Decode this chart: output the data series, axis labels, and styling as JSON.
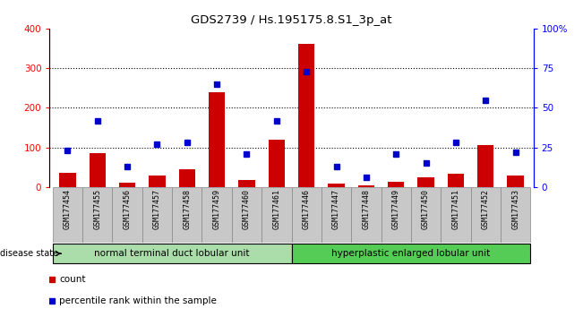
{
  "title": "GDS2739 / Hs.195175.8.S1_3p_at",
  "samples": [
    "GSM177454",
    "GSM177455",
    "GSM177456",
    "GSM177457",
    "GSM177458",
    "GSM177459",
    "GSM177460",
    "GSM177461",
    "GSM177446",
    "GSM177447",
    "GSM177448",
    "GSM177449",
    "GSM177450",
    "GSM177451",
    "GSM177452",
    "GSM177453"
  ],
  "counts": [
    35,
    85,
    12,
    30,
    45,
    240,
    18,
    120,
    362,
    8,
    5,
    14,
    25,
    33,
    105,
    30
  ],
  "percentiles": [
    23,
    42,
    13,
    27,
    28,
    65,
    21,
    42,
    73,
    13,
    6,
    21,
    15,
    28,
    55,
    22
  ],
  "group1_label": "normal terminal duct lobular unit",
  "group2_label": "hyperplastic enlarged lobular unit",
  "group1_count": 8,
  "group2_count": 8,
  "bar_color": "#cc0000",
  "dot_color": "#0000cc",
  "ylim_left": [
    0,
    400
  ],
  "ylim_right": [
    0,
    100
  ],
  "yticks_left": [
    0,
    100,
    200,
    300,
    400
  ],
  "yticks_right": [
    0,
    25,
    50,
    75,
    100
  ],
  "ytick_labels_right": [
    "0",
    "25",
    "50",
    "75",
    "100%"
  ],
  "group1_color": "#aaddaa",
  "group2_color": "#55cc55",
  "xticklabel_bg": "#c8c8c8",
  "legend_count_label": "count",
  "legend_pct_label": "percentile rank within the sample",
  "disease_state_label": "disease state"
}
